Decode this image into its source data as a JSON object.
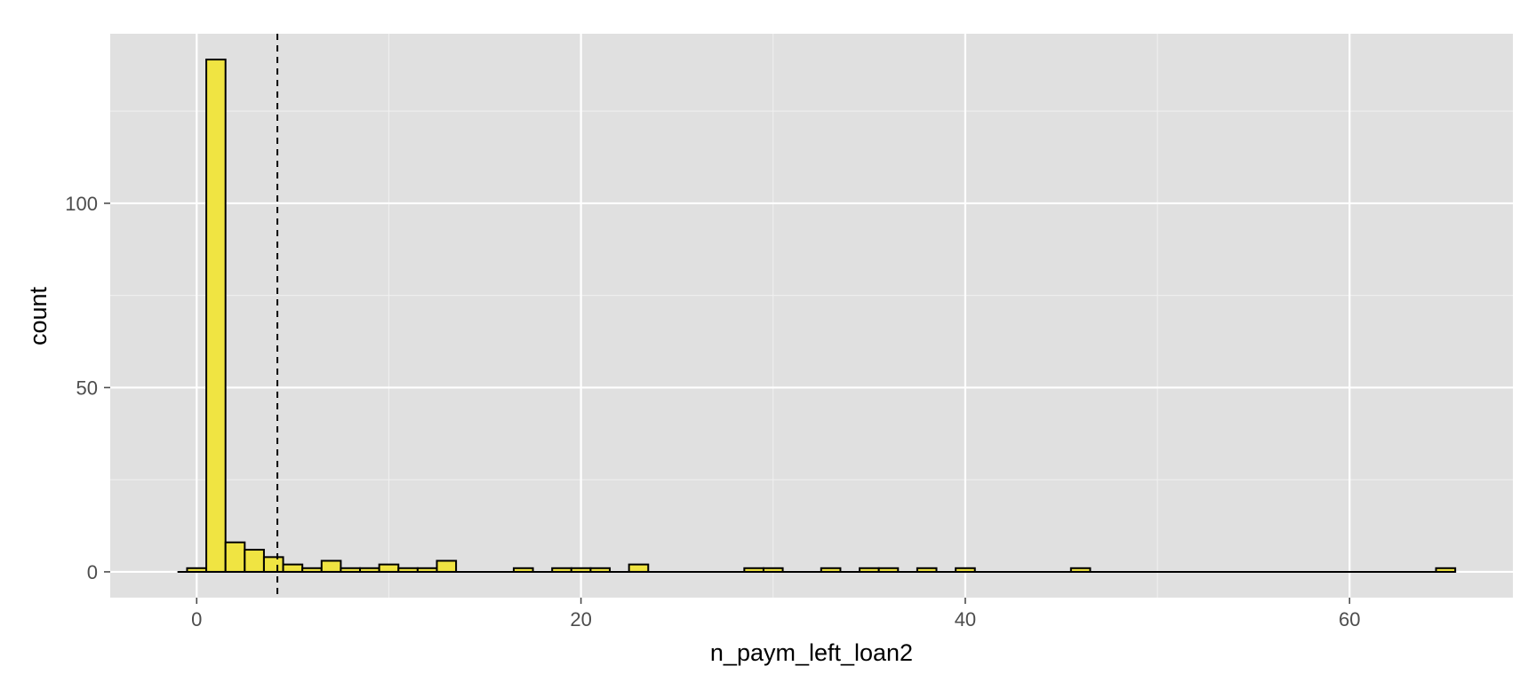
{
  "chart_data": {
    "type": "bar",
    "subtype": "histogram",
    "xlabel": "n_paym_left_loan2",
    "ylabel": "count",
    "xlim": [
      -4.5,
      68.5
    ],
    "ylim": [
      -7,
      146
    ],
    "x_ticks": [
      0,
      20,
      40,
      60
    ],
    "y_ticks": [
      0,
      50,
      100
    ],
    "grid": true,
    "bin_width": 1,
    "bins": {
      "x": [
        0,
        1,
        2,
        3,
        4,
        5,
        6,
        7,
        8,
        9,
        10,
        11,
        12,
        13,
        14,
        15,
        16,
        17,
        18,
        19,
        20,
        21,
        22,
        23,
        24,
        25,
        26,
        27,
        28,
        29,
        30,
        31,
        32,
        33,
        34,
        35,
        36,
        37,
        38,
        39,
        40,
        41,
        42,
        43,
        44,
        45,
        46,
        47,
        48,
        49,
        50,
        51,
        52,
        53,
        54,
        55,
        56,
        57,
        58,
        59,
        60,
        61,
        62,
        63,
        64,
        65
      ],
      "counts": [
        1,
        139,
        8,
        6,
        4,
        2,
        1,
        3,
        1,
        1,
        2,
        1,
        1,
        3,
        0,
        0,
        0,
        1,
        0,
        1,
        1,
        1,
        0,
        2,
        0,
        0,
        0,
        0,
        0,
        1,
        1,
        0,
        0,
        1,
        0,
        1,
        1,
        0,
        1,
        0,
        1,
        0,
        0,
        0,
        0,
        0,
        1,
        0,
        0,
        0,
        0,
        0,
        0,
        0,
        0,
        0,
        0,
        0,
        0,
        0,
        0,
        0,
        0,
        0,
        0,
        1
      ]
    },
    "baseline_span": [
      -1,
      65.5
    ],
    "reference_line": {
      "x": 4.2,
      "style": "dashed"
    },
    "colors": {
      "bar_fill": "#f0e442",
      "bar_outline": "#000000",
      "panel": "#e0e0e0",
      "grid": "#ffffff"
    }
  }
}
